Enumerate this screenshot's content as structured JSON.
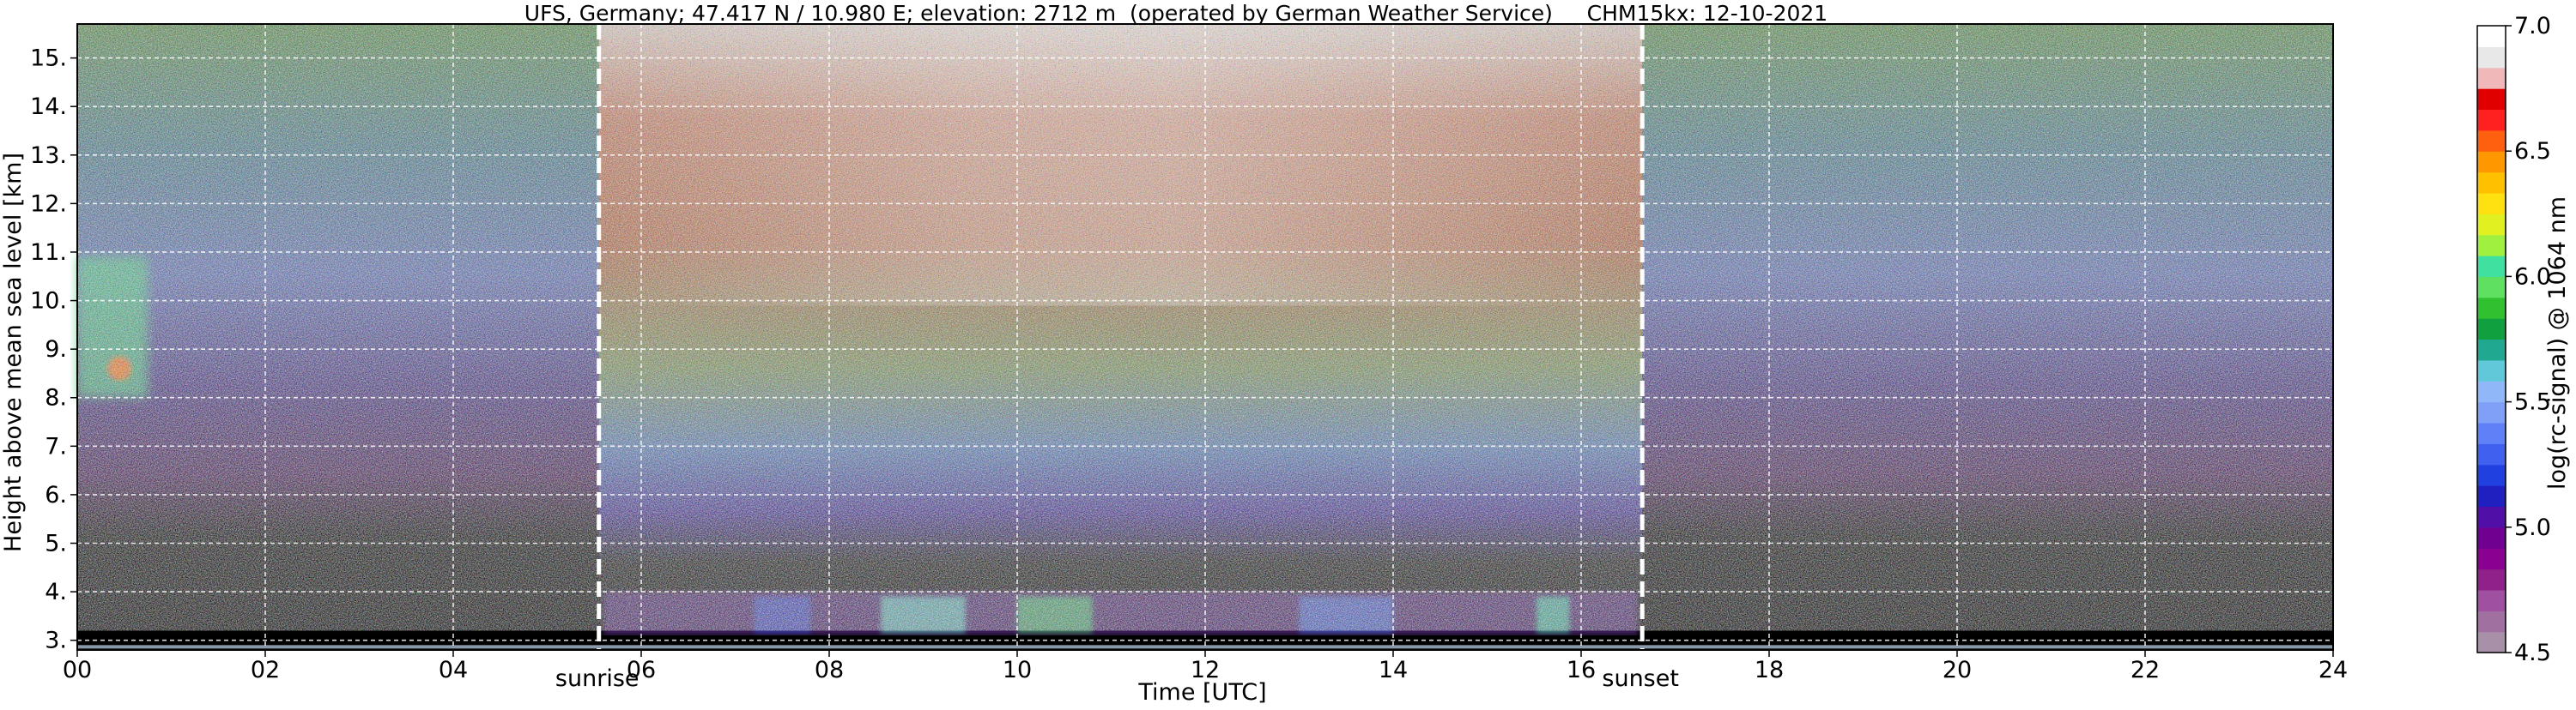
{
  "chart_data": {
    "type": "heatmap",
    "title": "UFS, Germany; 47.417 N / 10.980 E; elevation: 2712 m  (operated by German Weather Service)     CHM15kx: 12-10-2021",
    "xlabel": "Time [UTC]",
    "ylabel": "Height above mean sea level [km]",
    "xlim": [
      0,
      24
    ],
    "ylim": [
      2.8,
      15.7
    ],
    "x_ticks": [
      0,
      2,
      4,
      6,
      8,
      10,
      12,
      14,
      16,
      18,
      20,
      22,
      24
    ],
    "x_tick_labels": [
      "00",
      "02",
      "04",
      "06",
      "08",
      "10",
      "12",
      "14",
      "16",
      "18",
      "20",
      "22",
      "24"
    ],
    "y_ticks": [
      3,
      4,
      5,
      6,
      7,
      8,
      9,
      10,
      11,
      12,
      13,
      14,
      15
    ],
    "y_tick_labels": [
      "3.",
      "4.",
      "5.",
      "6.",
      "7.",
      "8.",
      "9.",
      "10.",
      "11.",
      "12.",
      "13.",
      "14.",
      "15."
    ],
    "grid": true,
    "colorbar": {
      "label": "log(rc-signal) @ 1064 nm",
      "range": [
        4.5,
        7.0
      ],
      "ticks": [
        4.5,
        5.0,
        5.5,
        6.0,
        6.5,
        7.0
      ],
      "tick_labels": [
        "4.5",
        "5.0",
        "5.5",
        "6.0",
        "6.5",
        "7.0"
      ],
      "colors": [
        "#a890a8",
        "#a070a0",
        "#a050a0",
        "#90208a",
        "#8a0090",
        "#700090",
        "#5010a8",
        "#2020c0",
        "#2040e0",
        "#4060f0",
        "#6080f8",
        "#80a0f8",
        "#90b8f8",
        "#60c8d8",
        "#20a890",
        "#10a040",
        "#30c030",
        "#60e060",
        "#40e0a0",
        "#a0f040",
        "#e0f020",
        "#ffe010",
        "#ffc000",
        "#ff9800",
        "#ff6010",
        "#ff2020",
        "#e00000",
        "#f0b8b8",
        "#e8e8e8",
        "#ffffff"
      ]
    },
    "annotations": [
      {
        "text": "sunrise",
        "x": 5.55
      },
      {
        "text": "sunset",
        "x": 16.65
      }
    ],
    "features": [
      {
        "type": "cloud",
        "x_range": [
          0.0,
          0.75
        ],
        "y_range": [
          8.0,
          10.9
        ]
      },
      {
        "type": "boundary_layer",
        "x_range": [
          5.6,
          16.6
        ],
        "y_range": [
          3.1,
          4.0
        ]
      }
    ]
  }
}
